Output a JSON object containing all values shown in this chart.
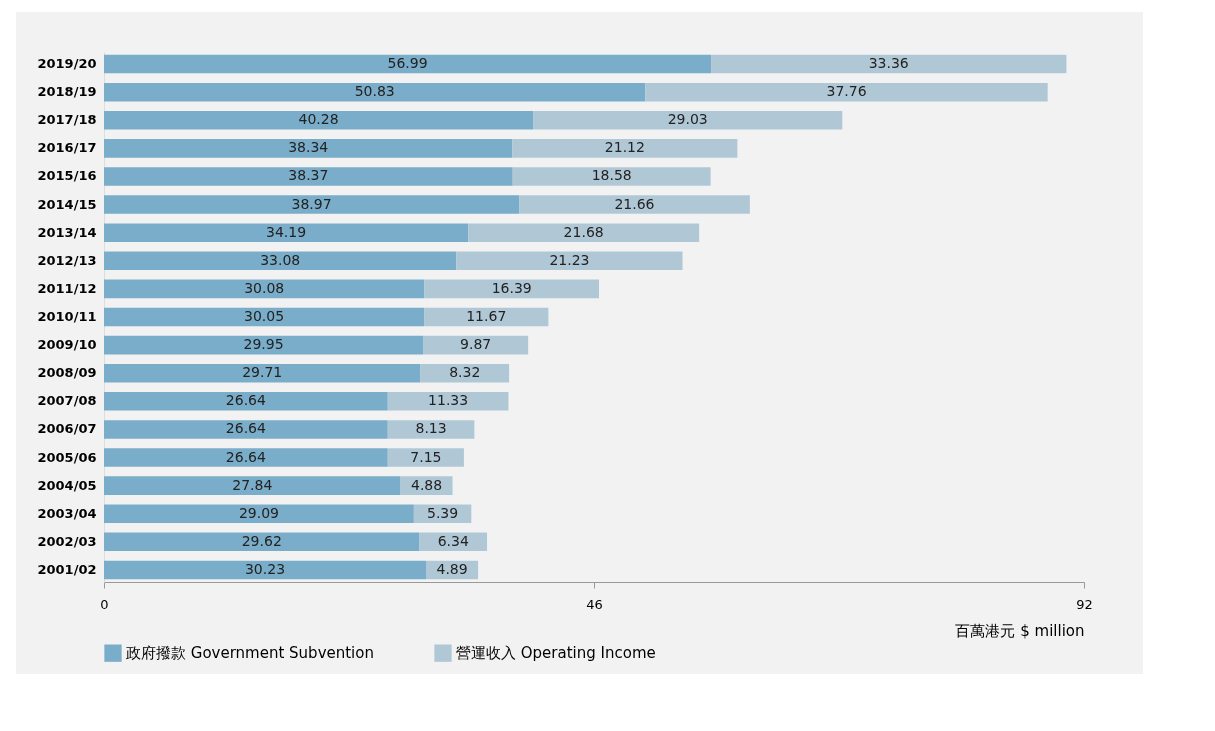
{
  "chart_data": {
    "type": "bar",
    "orientation": "horizontal",
    "stacked": true,
    "data_labels": true,
    "grid": false,
    "legend": "bottom",
    "xlabel": "百萬港元 $ million",
    "categories": [
      "2019/20",
      "2018/19",
      "2017/18",
      "2016/17",
      "2015/16",
      "2014/15",
      "2013/14",
      "2012/13",
      "2011/12",
      "2010/11",
      "2009/10",
      "2008/09",
      "2007/08",
      "2006/07",
      "2005/06",
      "2004/05",
      "2003/04",
      "2002/03",
      "2001/02"
    ],
    "series": [
      {
        "name": "政府撥款 Government Subvention",
        "color": "#7aadc9",
        "values": [
          56.99,
          50.83,
          40.28,
          38.34,
          38.37,
          38.97,
          34.19,
          33.08,
          30.08,
          30.05,
          29.95,
          29.71,
          26.64,
          26.64,
          26.64,
          27.84,
          29.09,
          29.62,
          30.23
        ]
      },
      {
        "name": "營運收入 Operating Income",
        "color": "#b0c8d6",
        "values": [
          33.36,
          37.76,
          29.03,
          21.12,
          18.58,
          21.66,
          21.68,
          21.23,
          16.39,
          11.67,
          9.87,
          8.32,
          11.33,
          8.13,
          7.15,
          4.88,
          5.39,
          6.34,
          4.89
        ]
      }
    ],
    "xlim": [
      0,
      92
    ],
    "xticks": [
      0,
      46,
      92
    ]
  }
}
